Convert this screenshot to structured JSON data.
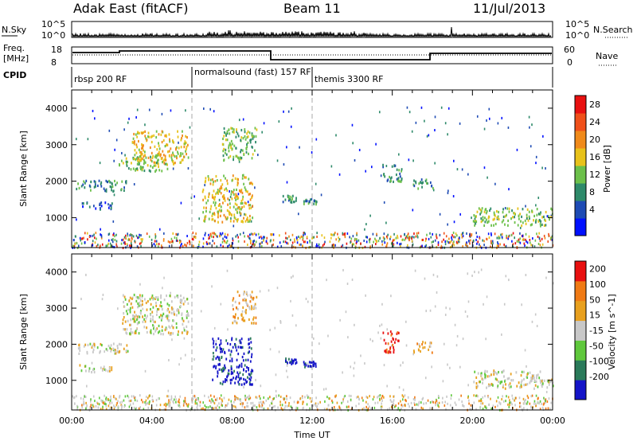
{
  "header": {
    "station": "Adak East (fitACF)",
    "beam": "Beam 11",
    "date": "11/Jul/2013"
  },
  "strip": {
    "nsky_label": "N.Sky",
    "nsky_ticks": [
      "10^5",
      "10^0"
    ],
    "nsearch_label": "N.Search",
    "freq_label_1": "Freq.",
    "freq_label_2": "[MHz]",
    "freq_ticks": [
      "18",
      "8"
    ],
    "nave_label": "Nave",
    "nave_ticks": [
      "60",
      "0"
    ],
    "cpid_label": "CPID",
    "modes": [
      {
        "name": "rbsp 200 RF",
        "start": 0,
        "end": 6
      },
      {
        "name": "normalsound (fast) 157 RF",
        "start": 6,
        "end": 12
      },
      {
        "name": "themis 3300 RF",
        "start": 12,
        "end": 24
      }
    ]
  },
  "colors": {
    "power": [
      "#0010ff",
      "#1e4bb4",
      "#2e8a6a",
      "#6cc04a",
      "#e8c21a",
      "#f08a1a",
      "#f0501a",
      "#e81010"
    ],
    "velocity": [
      "#1414c8",
      "#2a7a5a",
      "#5fc83c",
      "#c8c8c8",
      "#e8a01e",
      "#f07a14",
      "#e81010"
    ]
  },
  "chart_data": [
    {
      "type": "heatmap",
      "panel": "power",
      "xlabel": "",
      "ylabel": "Slant Range [km]",
      "xlim": [
        0,
        24
      ],
      "ylim": [
        180,
        4500
      ],
      "yticks": [
        "4000",
        "3000",
        "2000",
        "1000"
      ],
      "colorbar_label": "Power [dB]",
      "colorbar_ticks": [
        "28",
        "24",
        "20",
        "16",
        "12",
        "8",
        "4"
      ],
      "regions": [
        {
          "t0": 0.2,
          "t1": 2.8,
          "r0": 1750,
          "r1": 2050,
          "level": 2
        },
        {
          "t0": 0.3,
          "t1": 2.0,
          "r0": 1250,
          "r1": 1450,
          "level": 1
        },
        {
          "t0": 2.3,
          "t1": 4.8,
          "r0": 2300,
          "r1": 2700,
          "level": 3
        },
        {
          "t0": 3.0,
          "t1": 5.8,
          "r0": 2500,
          "r1": 3400,
          "level": 4
        },
        {
          "t0": 6.5,
          "t1": 9.0,
          "r0": 900,
          "r1": 2200,
          "level": 4
        },
        {
          "t0": 7.5,
          "t1": 9.2,
          "r0": 2600,
          "r1": 3500,
          "level": 3
        },
        {
          "t0": 10.5,
          "t1": 11.2,
          "r0": 1450,
          "r1": 1650,
          "level": 2
        },
        {
          "t0": 11.5,
          "t1": 12.2,
          "r0": 1400,
          "r1": 1550,
          "level": 2
        },
        {
          "t0": 15.5,
          "t1": 16.5,
          "r0": 2000,
          "r1": 2500,
          "level": 2
        },
        {
          "t0": 17.0,
          "t1": 18.0,
          "r0": 1800,
          "r1": 2100,
          "level": 2
        },
        {
          "t0": 20.0,
          "t1": 24.0,
          "r0": 800,
          "r1": 1300,
          "level": 3
        }
      ]
    },
    {
      "type": "heatmap",
      "panel": "velocity",
      "xlabel": "Time UT",
      "ylabel": "Slant Range [km]",
      "xlim": [
        0,
        24
      ],
      "xticks": [
        "00:00",
        "04:00",
        "08:00",
        "12:00",
        "16:00",
        "20:00",
        "00:00"
      ],
      "ylim": [
        180,
        4500
      ],
      "yticks": [
        "4000",
        "3000",
        "2000",
        "1000"
      ],
      "colorbar_label": "Velocity [m s^-1]",
      "colorbar_ticks": [
        "200",
        "100",
        "50",
        "15",
        "-15",
        "-50",
        "-100",
        "-200"
      ],
      "regions": [
        {
          "t0": 0.2,
          "t1": 2.8,
          "r0": 1750,
          "r1": 2050,
          "level": 3
        },
        {
          "t0": 0.3,
          "t1": 2.0,
          "r0": 1250,
          "r1": 1450,
          "level": 3
        },
        {
          "t0": 2.5,
          "t1": 5.8,
          "r0": 2300,
          "r1": 3400,
          "level": 3
        },
        {
          "t0": 7.0,
          "t1": 9.0,
          "r0": 900,
          "r1": 2200,
          "level": 0
        },
        {
          "t0": 8.0,
          "t1": 9.2,
          "r0": 2600,
          "r1": 3500,
          "level": 4
        },
        {
          "t0": 10.5,
          "t1": 11.2,
          "r0": 1450,
          "r1": 1650,
          "level": 0
        },
        {
          "t0": 11.5,
          "t1": 12.2,
          "r0": 1400,
          "r1": 1550,
          "level": 0
        },
        {
          "t0": 15.5,
          "t1": 16.3,
          "r0": 1800,
          "r1": 2400,
          "level": 6
        },
        {
          "t0": 17.0,
          "t1": 18.0,
          "r0": 1800,
          "r1": 2100,
          "level": 4
        },
        {
          "t0": 20.0,
          "t1": 24.0,
          "r0": 800,
          "r1": 1300,
          "level": 3
        }
      ]
    }
  ]
}
